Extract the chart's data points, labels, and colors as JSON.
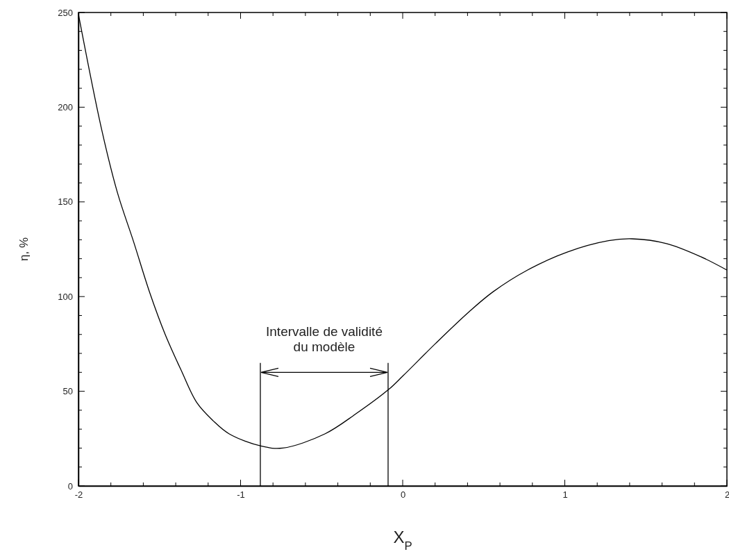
{
  "chart_data": {
    "type": "line",
    "xlabel": "X$_{P}$",
    "ylabel": "η, %",
    "x": [
      -2,
      -1.859,
      -1.76,
      -1.66,
      -1.56,
      -1.465,
      -1.366,
      -1.27,
      -1.17,
      -1.07,
      -0.87,
      -0.74,
      -0.48,
      -0.29,
      -0.086,
      0,
      0.2,
      0.41,
      0.557,
      0.77,
      1.015,
      1.27,
      1.414,
      1.627,
      1.84,
      2
    ],
    "series": [
      {
        "color": "#000000",
        "values": [
          249,
          189,
          155,
          129,
          102,
          80,
          61,
          44,
          34.5,
          27.5,
          21,
          20,
          27.5,
          38,
          51,
          58,
          75,
          92,
          102.5,
          114,
          123.5,
          129.5,
          130.5,
          128,
          121,
          114
        ]
      }
    ],
    "xlim": [
      -2,
      2
    ],
    "ylim": [
      0,
      250
    ],
    "xticks": [
      -2,
      {
        "value": -1.8,
        "label": null
      },
      {
        "value": -1.6,
        "label": null
      },
      {
        "value": -1.4,
        "label": null
      },
      {
        "value": -1.2,
        "label": null
      },
      -1,
      {
        "value": -0.8,
        "label": null
      },
      {
        "value": -0.6,
        "label": null
      },
      {
        "value": -0.4,
        "label": null
      },
      {
        "value": -0.2,
        "label": null
      },
      0,
      {
        "value": 0.2,
        "label": null
      },
      {
        "value": 0.4,
        "label": null
      },
      {
        "value": 0.6,
        "label": null
      },
      {
        "value": 0.8,
        "label": null
      },
      1,
      {
        "value": 1.2,
        "label": null
      },
      {
        "value": 1.4,
        "label": null
      },
      {
        "value": 1.6,
        "label": null
      },
      {
        "value": 1.8,
        "label": null
      },
      2
    ],
    "yticks": [
      0,
      {
        "value": 10,
        "label": null
      },
      {
        "value": 20,
        "label": null
      },
      {
        "value": 30,
        "label": null
      },
      {
        "value": 40,
        "label": null
      },
      50,
      {
        "value": 60,
        "label": null
      },
      {
        "value": 70,
        "label": null
      },
      {
        "value": 80,
        "label": null
      },
      {
        "value": 90,
        "label": null
      },
      100,
      {
        "value": 110,
        "label": null
      },
      {
        "value": 120,
        "label": null
      },
      {
        "value": 130,
        "label": null
      },
      {
        "value": 140,
        "label": null
      },
      150,
      {
        "value": 160,
        "label": null
      },
      {
        "value": 170,
        "label": null
      },
      {
        "value": 180,
        "label": null
      },
      {
        "value": 190,
        "label": null
      },
      200,
      {
        "value": 210,
        "label": null
      },
      {
        "value": 220,
        "label": null
      },
      {
        "value": 230,
        "label": null
      },
      {
        "value": 240,
        "label": null
      },
      250
    ],
    "ref_lines": [
      {
        "axis": "x",
        "value": -0.878,
        "color": "#000000"
      },
      {
        "axis": "x",
        "value": -0.09,
        "color": "#000000"
      }
    ],
    "annotations": [
      "Intervalle de validité\ndu modèle"
    ],
    "grid": false,
    "marker": "none",
    "line_style": "solid"
  }
}
